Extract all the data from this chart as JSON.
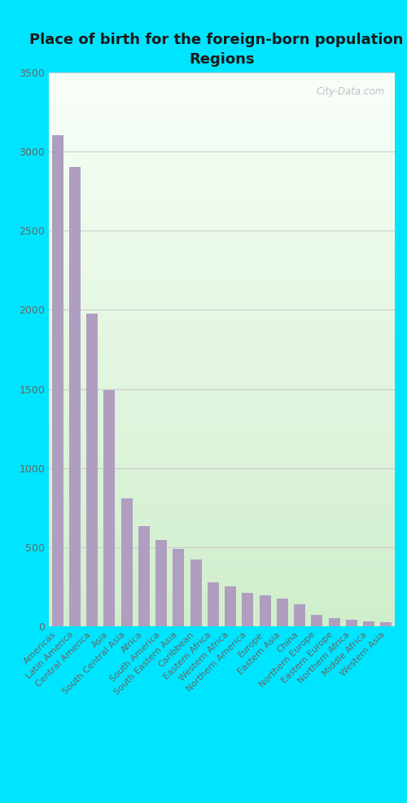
{
  "title": "Place of birth for the foreign-born population -\nRegions",
  "categories": [
    "Americas",
    "Latin America",
    "Central America",
    "Asia",
    "South Central Asia",
    "Africa",
    "South America",
    "South Eastern Asia",
    "Caribbean",
    "Eastern Africa",
    "Western Africa",
    "Northern America",
    "Europe",
    "Eastern Asia",
    "China",
    "Northern Europe",
    "Eastern Europe",
    "Northern Africa",
    "Middle Africa",
    "Western Asia"
  ],
  "values": [
    3100,
    2900,
    1975,
    1490,
    810,
    635,
    545,
    490,
    420,
    280,
    255,
    210,
    195,
    175,
    140,
    75,
    50,
    40,
    30,
    25
  ],
  "bar_color": "#b09ec0",
  "bg_color_outer": "#00e5ff",
  "ylim": [
    0,
    3500
  ],
  "yticks": [
    0,
    500,
    1000,
    1500,
    2000,
    2500,
    3000,
    3500
  ],
  "title_fontsize": 13,
  "title_color": "#1a1a1a",
  "tick_color": "#666666",
  "grid_color": "#cccccc",
  "watermark_text": "City-Data.com",
  "bar_width": 0.65
}
